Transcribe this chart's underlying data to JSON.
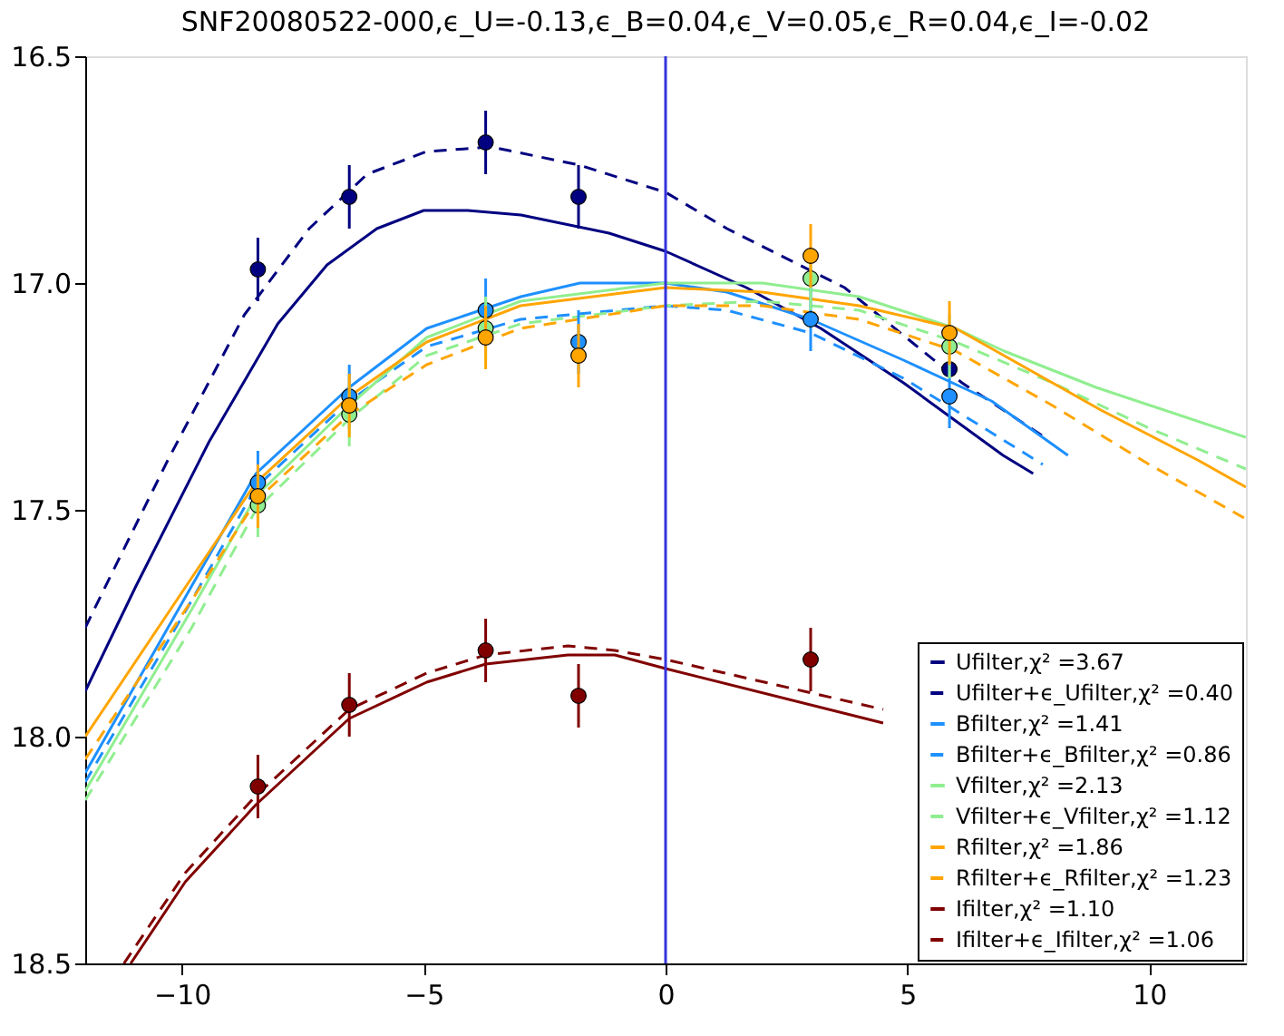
{
  "chart_data": {
    "type": "line",
    "title": "SNF20080522-000,ϵ_U=-0.13,ϵ_B=0.04,ϵ_V=0.05,ϵ_R=0.04,ϵ_I=-0.02",
    "xlim": [
      -12,
      12
    ],
    "ylim": [
      18.5,
      16.5
    ],
    "xticks": [
      {
        "value": -10,
        "label": "−10"
      },
      {
        "value": -5,
        "label": "−5"
      },
      0,
      5,
      10
    ],
    "yticks": [
      16.5,
      {
        "value": 17,
        "label": "17.0"
      },
      17.5,
      {
        "value": 18,
        "label": "18.0"
      },
      18.5
    ],
    "grid": false,
    "legend": "bottom right",
    "ref_lines": [
      {
        "axis": "x",
        "value": 0,
        "color": "#3333dd"
      }
    ],
    "series": [
      {
        "name": "Ufilter,χ² =3.67",
        "color": "#000080",
        "line_style": "solid",
        "x": [
          -12,
          -10.96,
          -9.44,
          -8.02,
          -7.0,
          -5.97,
          -5.0,
          -4.09,
          -2.99,
          -1.17,
          0,
          1.67,
          3.21,
          4.92,
          6.98,
          7.6
        ],
        "values": [
          17.9,
          17.67,
          17.35,
          17.09,
          16.96,
          16.88,
          16.84,
          16.84,
          16.85,
          16.89,
          16.93,
          17.01,
          17.1,
          17.22,
          17.38,
          17.42
        ]
      },
      {
        "name": "Ufilter+ϵ_Ufilter,χ² =0.40",
        "color": "#000080",
        "line_style": "dashed",
        "x": [
          -12,
          -11.45,
          -10.29,
          -8.71,
          -7.37,
          -6.17,
          -4.94,
          -3.6,
          -1.78,
          0,
          1.27,
          3.7,
          6.13,
          7.84
        ],
        "values": [
          17.76,
          17.64,
          17.39,
          17.07,
          16.88,
          16.76,
          16.71,
          16.7,
          16.74,
          16.8,
          16.88,
          17.01,
          17.22,
          17.34
        ]
      },
      {
        "name": "Bfilter,χ² =1.41",
        "color": "#1e90ff",
        "line_style": "solid",
        "x": [
          -12,
          -9.81,
          -8.47,
          -6.54,
          -4.94,
          -2.99,
          -1.77,
          0,
          1.27,
          3.0,
          4.92,
          6.74,
          8.32
        ],
        "values": [
          18.08,
          17.67,
          17.42,
          17.23,
          17.1,
          17.03,
          17.0,
          17.0,
          17.02,
          17.08,
          17.17,
          17.26,
          17.38
        ]
      },
      {
        "name": "Bfilter+ϵ_Bfilter,χ² =0.86",
        "color": "#1e90ff",
        "line_style": "dashed",
        "x": [
          -12,
          -9.8,
          -8.47,
          -6.54,
          -4.94,
          -3,
          0,
          1.27,
          3.0,
          4.92,
          6.74,
          7.8
        ],
        "values": [
          18.1,
          17.7,
          17.45,
          17.26,
          17.14,
          17.08,
          17.05,
          17.06,
          17.11,
          17.21,
          17.33,
          17.4
        ]
      },
      {
        "name": "Vfilter,χ² =2.13",
        "color": "#90ee90",
        "line_style": "solid",
        "x": [
          -12,
          -9.8,
          -8.47,
          -6.54,
          -4.94,
          -3,
          0,
          2,
          4,
          6,
          7,
          8.9,
          12
        ],
        "values": [
          18.12,
          17.72,
          17.47,
          17.27,
          17.12,
          17.04,
          17.0,
          17.0,
          17.03,
          17.1,
          17.15,
          17.23,
          17.34
        ]
      },
      {
        "name": "Vfilter+ϵ_Vfilter,χ² =1.12",
        "color": "#90ee90",
        "line_style": "dashed",
        "x": [
          -12,
          -9.8,
          -8.47,
          -6.54,
          -4.94,
          -3,
          0,
          2,
          4,
          6,
          8,
          10,
          12
        ],
        "values": [
          18.14,
          17.76,
          17.5,
          17.3,
          17.16,
          17.09,
          17.05,
          17.04,
          17.06,
          17.13,
          17.22,
          17.32,
          17.41
        ]
      },
      {
        "name": "Rfilter,χ² =1.86",
        "color": "#ffa500",
        "line_style": "solid",
        "x": [
          -12,
          -9.8,
          -8.47,
          -6.54,
          -4.94,
          -3,
          0,
          2,
          4,
          6,
          7.5,
          9,
          11,
          12
        ],
        "values": [
          18.0,
          17.65,
          17.44,
          17.25,
          17.13,
          17.05,
          17.01,
          17.02,
          17.05,
          17.1,
          17.19,
          17.28,
          17.39,
          17.45
        ]
      },
      {
        "name": "Rfilter+ϵ_Rfilter,χ² =1.23",
        "color": "#ffa500",
        "line_style": "dashed",
        "x": [
          -12,
          -9.8,
          -8.47,
          -6.54,
          -4.94,
          -3,
          0,
          2,
          4,
          6,
          8,
          10,
          12
        ],
        "values": [
          18.05,
          17.7,
          17.48,
          17.29,
          17.18,
          17.1,
          17.05,
          17.05,
          17.08,
          17.15,
          17.27,
          17.4,
          17.52
        ]
      },
      {
        "name": "Ifilter,χ² =1.10",
        "color": "#800000",
        "line_style": "solid",
        "x": [
          -11.06,
          -9.93,
          -8.47,
          -6.54,
          -4.94,
          -3.72,
          -2.02,
          -1.05,
          0,
          4.5
        ],
        "values": [
          18.5,
          18.32,
          18.15,
          17.96,
          17.88,
          17.84,
          17.82,
          17.82,
          17.85,
          17.97
        ]
      },
      {
        "name": "Ifilter+ϵ_Ifilter,χ² =1.06",
        "color": "#800000",
        "line_style": "dashed",
        "x": [
          -11.2,
          -9.93,
          -8.47,
          -6.54,
          -4.94,
          -3.72,
          -2.02,
          -1.05,
          0,
          4.5
        ],
        "values": [
          18.5,
          18.3,
          18.13,
          17.94,
          17.86,
          17.82,
          17.8,
          17.81,
          17.83,
          17.94
        ]
      },
      {
        "type": "scatter",
        "marker": "circle",
        "color": "#000080",
        "x": [
          -8.43,
          -6.54,
          -3.72,
          -1.8,
          5.87
        ],
        "values": [
          16.97,
          16.81,
          16.69,
          16.81,
          17.19
        ],
        "errors": [
          0.07,
          0.07,
          0.07,
          0.07,
          null
        ]
      },
      {
        "type": "scatter",
        "marker": "circle",
        "color": "#1e90ff",
        "x": [
          -8.43,
          -6.54,
          -3.72,
          -1.8,
          3.0,
          5.87
        ],
        "values": [
          17.44,
          17.25,
          17.06,
          17.13,
          17.08,
          17.25
        ],
        "errors": [
          0.07,
          0.07,
          0.07,
          0.07,
          0.07,
          0.07
        ]
      },
      {
        "type": "scatter",
        "marker": "circle",
        "color": "#90ee90",
        "x": [
          -8.43,
          -6.54,
          -3.72,
          -1.8,
          3.0,
          5.87
        ],
        "values": [
          17.49,
          17.29,
          17.1,
          null,
          16.99,
          17.14
        ],
        "errors": [
          0.07,
          0.07,
          0.07,
          null,
          0.07,
          0.07
        ]
      },
      {
        "type": "scatter",
        "marker": "circle",
        "color": "#ffa500",
        "x": [
          -8.43,
          -6.54,
          -3.72,
          -1.8,
          3.0,
          5.87
        ],
        "values": [
          17.47,
          17.27,
          17.12,
          17.16,
          16.94,
          17.11
        ],
        "errors": [
          0.07,
          0.07,
          0.07,
          0.07,
          0.07,
          0.07
        ]
      },
      {
        "type": "scatter",
        "marker": "circle",
        "color": "#800000",
        "x": [
          -8.43,
          -6.54,
          -3.72,
          -1.8,
          3.0
        ],
        "values": [
          18.11,
          17.93,
          17.81,
          17.91,
          17.83
        ],
        "errors": [
          0.07,
          0.07,
          0.07,
          0.07,
          0.07
        ]
      }
    ]
  }
}
